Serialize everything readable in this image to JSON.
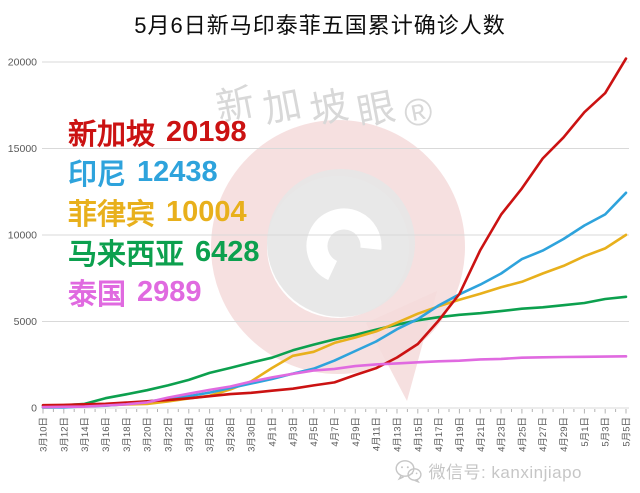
{
  "title": "5月6日新马印泰菲五国累计确诊人数",
  "watermark": {
    "text": "新加坡眼®"
  },
  "footer": {
    "wechat_label": "微信号: kanxinjiapo"
  },
  "chart_data": {
    "type": "line",
    "title": "5月6日新马印泰菲五国累计确诊人数",
    "xlabel": "",
    "ylabel": "",
    "ylim": [
      0,
      20000
    ],
    "yticks": [
      0,
      5000,
      10000,
      15000,
      20000
    ],
    "grid": "horizontal-only",
    "legend_position": "overlay-top-left",
    "x_labels": [
      "3月10日",
      "3月12日",
      "3月14日",
      "3月16日",
      "3月18日",
      "3月20日",
      "3月22日",
      "3月24日",
      "3月26日",
      "3月28日",
      "3月30日",
      "4月1日",
      "4月3日",
      "4月5日",
      "4月7日",
      "4月9日",
      "4月11日",
      "4月13日",
      "4月15日",
      "4月17日",
      "4月19日",
      "4月21日",
      "4月23日",
      "4月25日",
      "4月27日",
      "4月29日",
      "5月1日",
      "5月3日",
      "5月5日"
    ],
    "series": [
      {
        "name": "新加坡",
        "final": 20198,
        "color": "#cb1212",
        "values": [
          160,
          178,
          212,
          243,
          313,
          385,
          455,
          558,
          683,
          802,
          879,
          1000,
          1114,
          1309,
          1481,
          1910,
          2299,
          2918,
          3699,
          5050,
          6588,
          9125,
          11178,
          12693,
          14423,
          15641,
          17101,
          18205,
          20198
        ]
      },
      {
        "name": "印尼",
        "final": 12438,
        "color": "#2ea3dc",
        "values": [
          27,
          34,
          96,
          134,
          227,
          369,
          514,
          686,
          893,
          1155,
          1414,
          1677,
          1986,
          2273,
          2738,
          3293,
          3842,
          4557,
          5136,
          5923,
          6575,
          7135,
          7775,
          8607,
          9096,
          9771,
          10551,
          11192,
          12438
        ]
      },
      {
        "name": "菲律宾",
        "final": 10004,
        "color": "#e8b01c",
        "values": [
          33,
          52,
          111,
          142,
          202,
          230,
          380,
          552,
          707,
          1075,
          1546,
          2311,
          3018,
          3246,
          3764,
          4076,
          4428,
          4932,
          5453,
          5878,
          6259,
          6599,
          6981,
          7294,
          7777,
          8212,
          8772,
          9223,
          10004
        ]
      },
      {
        "name": "马来西亚",
        "final": 6428,
        "color": "#0ca04e",
        "values": [
          129,
          158,
          238,
          566,
          790,
          1030,
          1306,
          1624,
          2031,
          2320,
          2626,
          2908,
          3333,
          3662,
          3963,
          4228,
          4530,
          4817,
          5072,
          5251,
          5389,
          5482,
          5603,
          5742,
          5820,
          5945,
          6071,
          6298,
          6428
        ]
      },
      {
        "name": "泰国",
        "final": 2989,
        "color": "#e06ae0",
        "values": [
          53,
          70,
          82,
          147,
          212,
          322,
          599,
          827,
          1045,
          1245,
          1524,
          1771,
          1978,
          2169,
          2258,
          2423,
          2518,
          2579,
          2643,
          2700,
          2733,
          2811,
          2839,
          2907,
          2931,
          2947,
          2960,
          2969,
          2989
        ]
      }
    ],
    "draw_order": [
      3,
      2,
      1,
      0,
      4
    ]
  }
}
